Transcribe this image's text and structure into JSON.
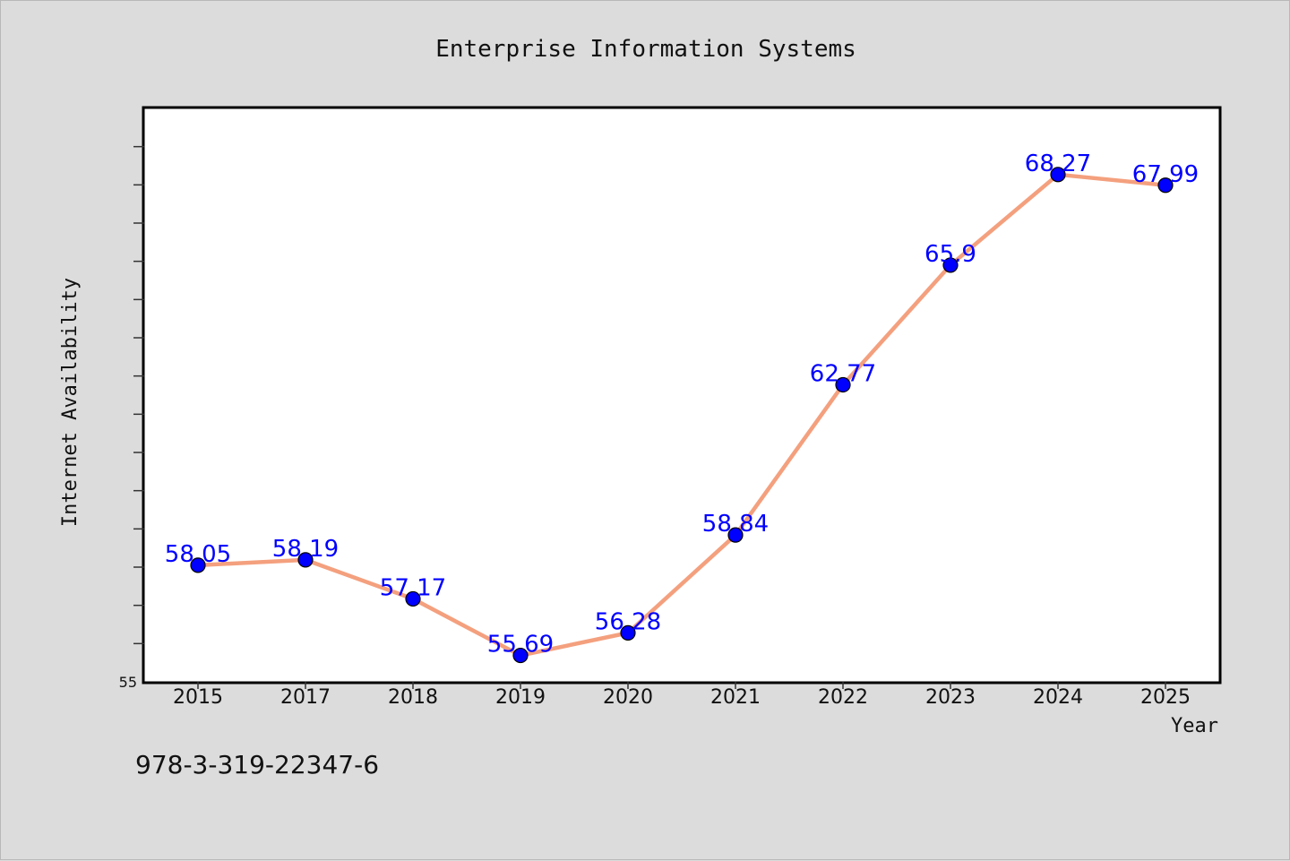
{
  "chart_data": {
    "type": "line",
    "title": "Enterprise Information Systems",
    "xlabel": "Year",
    "ylabel": "Internet Availability",
    "categories": [
      "2015",
      "2017",
      "2018",
      "2019",
      "2020",
      "2021",
      "2022",
      "2023",
      "2024",
      "2025"
    ],
    "series": [
      {
        "values": [
          58.05,
          58.19,
          57.17,
          55.69,
          56.28,
          58.84,
          62.77,
          65.9,
          68.27,
          67.99
        ],
        "labels": [
          "58.05",
          "58.19",
          "57.17",
          "55.69",
          "56.28",
          "58.84",
          "62.77",
          "65.9",
          "68.27",
          "67.99"
        ],
        "line_color": "#f4a07e",
        "marker_color": "#0000ff"
      }
    ],
    "ylim": [
      55,
      70
    ],
    "yticks": [
      "55"
    ],
    "grid": false,
    "plot_background": "#ffffff",
    "page_background": "#dcdcdc"
  },
  "footer": {
    "isbn": "978-3-319-22347-6"
  }
}
